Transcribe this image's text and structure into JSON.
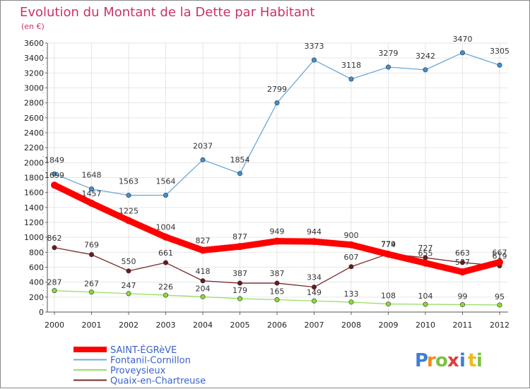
{
  "chart_data": {
    "type": "line",
    "title": "Evolution du Montant de la Dette par Habitant",
    "subtitle": "(en €)",
    "x": [
      "2000",
      "2001",
      "2002",
      "2003",
      "2004",
      "2005",
      "2006",
      "2007",
      "2008",
      "2009",
      "2010",
      "2011",
      "2012"
    ],
    "ylim": [
      0,
      3600
    ],
    "yticks": [
      0,
      200,
      400,
      600,
      800,
      1000,
      1200,
      1400,
      1600,
      1800,
      2000,
      2200,
      2400,
      2600,
      2800,
      3000,
      3200,
      3400,
      3600
    ],
    "grid": true,
    "legend_position": "bottom-left",
    "series": [
      {
        "name": "SAINT-ÉGRèVE",
        "color": "#ff0000",
        "values": [
          1699,
          1457,
          1225,
          1004,
          827,
          877,
          949,
          944,
          900,
          774,
          655,
          537,
          667
        ]
      },
      {
        "name": "Fontanil-Cornillon",
        "color": "#6fa7d8",
        "marker": "#3f8fd0",
        "values": [
          1849,
          1648,
          1563,
          1564,
          2037,
          1854,
          2799,
          3373,
          3118,
          3279,
          3242,
          3470,
          3305
        ]
      },
      {
        "name": "Proveysieux",
        "color": "#99dd66",
        "marker": "#88dd33",
        "values": [
          287,
          267,
          247,
          226,
          204,
          179,
          165,
          149,
          133,
          108,
          104,
          99,
          95
        ]
      },
      {
        "name": "Quaix-en-Chartreuse",
        "color": "#7a2a2a",
        "marker": "#6a1a1a",
        "values": [
          862,
          769,
          550,
          661,
          418,
          387,
          387,
          334,
          607,
          779,
          727,
          663,
          619
        ]
      }
    ]
  },
  "logo": {
    "letters": [
      "P",
      "r",
      "o",
      "x",
      "i",
      "t",
      "i"
    ],
    "colors": [
      "#3d7fd6",
      "#f08a1c",
      "#7cc242",
      "#e23b3b",
      "#3d7fd6",
      "#f2b81c",
      "#7cc242"
    ]
  }
}
